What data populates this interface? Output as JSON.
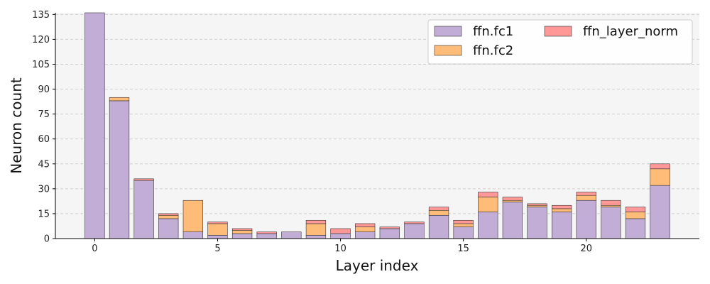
{
  "chart_data": {
    "type": "bar",
    "stacked": true,
    "xlabel": "Layer index",
    "ylabel": "Neuron count",
    "xlim": [
      -1.6,
      24.6
    ],
    "ylim": [
      0,
      136
    ],
    "xticks": [
      0,
      5,
      10,
      15,
      20
    ],
    "yticks": [
      0,
      15,
      30,
      45,
      60,
      75,
      90,
      105,
      120,
      135
    ],
    "grid": "y-dashed",
    "legend_position": "top-right",
    "x": [
      0,
      1,
      2,
      3,
      4,
      5,
      6,
      7,
      8,
      9,
      10,
      11,
      12,
      13,
      14,
      15,
      16,
      17,
      18,
      19,
      20,
      21,
      22,
      23
    ],
    "series": [
      {
        "name": "ffn.fc1",
        "color": "#C2ADD6",
        "values": [
          136,
          83,
          35,
          12,
          4,
          2,
          3,
          3,
          4,
          2,
          3,
          4,
          6,
          9,
          14,
          7,
          16,
          22,
          19,
          16,
          23,
          19,
          12,
          32
        ]
      },
      {
        "name": "ffn.fc2",
        "color": "#FFBB78",
        "values": [
          0,
          2,
          0,
          2,
          19,
          7,
          2,
          0,
          0,
          7,
          0,
          3,
          0,
          0,
          3,
          2,
          9,
          1,
          1,
          2,
          3,
          1,
          4,
          10
        ]
      },
      {
        "name": "ffn_layer_norm",
        "color": "#FF9896",
        "values": [
          0,
          0,
          1,
          1,
          0,
          1,
          1,
          1,
          0,
          2,
          3,
          2,
          1,
          1,
          2,
          2,
          3,
          2,
          1,
          2,
          2,
          3,
          3,
          3
        ]
      }
    ]
  }
}
